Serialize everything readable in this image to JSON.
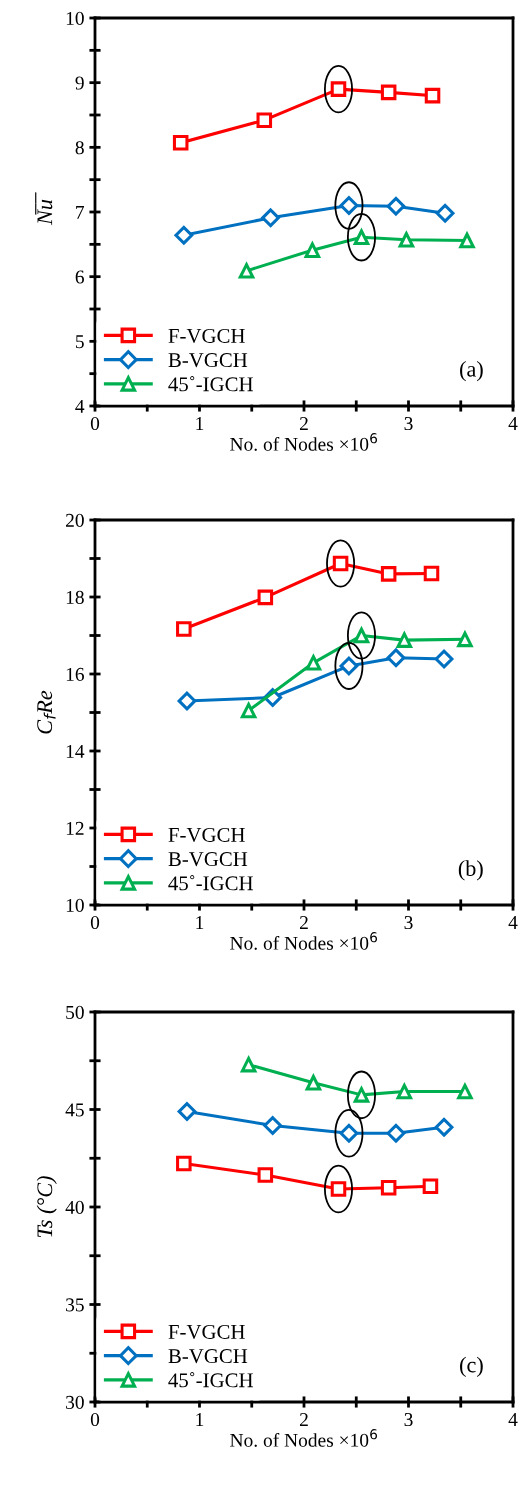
{
  "chart_data": [
    {
      "type": "line",
      "ylabel": "N̅u̅",
      "xlabel": "No. of Nodes ×10$^{6}$",
      "annotations": [
        {
          "text": "(a)"
        }
      ],
      "legend": "bottom left",
      "line_style": "solid",
      "grid": false,
      "xlim": [
        0,
        4
      ],
      "xticks": [
        0,
        {
          "value": 0.5,
          "label": null
        },
        1,
        {
          "value": 1.5,
          "label": null
        },
        2,
        {
          "value": 2.5,
          "label": null
        },
        3,
        {
          "value": 3.5,
          "label": null
        },
        4
      ],
      "ylim": [
        4,
        10
      ],
      "yticks": [
        4,
        {
          "value": 4.5,
          "label": null
        },
        5,
        {
          "value": 5.5,
          "label": null
        },
        6,
        {
          "value": 6.5,
          "label": null
        },
        7,
        {
          "value": 7.5,
          "label": null
        },
        8,
        {
          "value": 8.5,
          "label": null
        },
        9,
        {
          "value": 9.5,
          "label": null
        },
        10
      ],
      "series": [
        {
          "name": "F-VGCH",
          "color": "#ff0000",
          "marker": "square",
          "x": [
            0.82,
            1.62,
            2.33,
            2.81,
            3.23
          ],
          "values": [
            8.07,
            8.42,
            8.9,
            8.85,
            8.8
          ]
        },
        {
          "name": "B-VGCH",
          "color": "#0070c0",
          "marker": "diamond",
          "x": [
            0.85,
            1.68,
            2.43,
            2.88,
            3.35
          ],
          "values": [
            6.64,
            6.91,
            7.1,
            7.09,
            6.98
          ]
        },
        {
          "name": "45˚-IGCH",
          "color": "#00b050",
          "marker": "triangle",
          "x": [
            1.45,
            2.08,
            2.55,
            2.98,
            3.56
          ],
          "values": [
            6.09,
            6.41,
            6.61,
            6.57,
            6.56
          ]
        }
      ]
    },
    {
      "type": "line",
      "ylabel": "C$_{f}$Re",
      "xlabel": "No. of Nodes ×10$^{6}$",
      "annotations": [
        {
          "text": "(b)"
        }
      ],
      "legend": "bottom left",
      "line_style": "solid",
      "grid": false,
      "xlim": [
        0,
        4
      ],
      "xticks": [
        0,
        {
          "value": 0.5,
          "label": null
        },
        1,
        {
          "value": 1.5,
          "label": null
        },
        2,
        {
          "value": 2.5,
          "label": null
        },
        3,
        {
          "value": 3.5,
          "label": null
        },
        4
      ],
      "ylim": [
        10,
        20
      ],
      "yticks": [
        10,
        {
          "value": 11,
          "label": null
        },
        12,
        {
          "value": 13,
          "label": null
        },
        14,
        {
          "value": 15,
          "label": null
        },
        16,
        {
          "value": 17,
          "label": null
        },
        18,
        {
          "value": 19,
          "label": null
        },
        20
      ],
      "series": [
        {
          "name": "F-VGCH",
          "color": "#ff0000",
          "marker": "square",
          "x": [
            0.85,
            1.63,
            2.35,
            2.81,
            3.22
          ],
          "values": [
            17.17,
            17.99,
            18.87,
            18.6,
            18.61
          ]
        },
        {
          "name": "B-VGCH",
          "color": "#0070c0",
          "marker": "diamond",
          "x": [
            0.88,
            1.7,
            2.43,
            2.88,
            3.34
          ],
          "values": [
            15.3,
            15.39,
            16.21,
            16.42,
            16.39
          ]
        },
        {
          "name": "45˚-IGCH",
          "color": "#00b050",
          "marker": "triangle",
          "x": [
            1.47,
            2.09,
            2.55,
            2.96,
            3.54
          ],
          "values": [
            15.05,
            16.29,
            17.0,
            16.88,
            16.9
          ]
        }
      ]
    },
    {
      "type": "line",
      "ylabel": "Ts (°C)",
      "xlabel": "No. of Nodes ×10$^{6}$",
      "annotations": [
        {
          "text": "(c)"
        }
      ],
      "legend": "bottom left",
      "line_style": "solid",
      "grid": false,
      "xlim": [
        0,
        4
      ],
      "xticks": [
        0,
        {
          "value": 0.5,
          "label": null
        },
        1,
        {
          "value": 1.5,
          "label": null
        },
        2,
        {
          "value": 2.5,
          "label": null
        },
        3,
        {
          "value": 3.5,
          "label": null
        },
        4
      ],
      "ylim": [
        30,
        50
      ],
      "yticks": [
        30,
        {
          "value": 32.5,
          "label": null
        },
        35,
        {
          "value": 37.5,
          "label": null
        },
        40,
        {
          "value": 42.5,
          "label": null
        },
        45,
        {
          "value": 47.5,
          "label": null
        },
        50
      ],
      "series": [
        {
          "name": "F-VGCH",
          "color": "#ff0000",
          "marker": "square",
          "x": [
            0.85,
            1.63,
            2.33,
            2.81,
            3.21
          ],
          "values": [
            42.23,
            41.64,
            40.92,
            40.99,
            41.06
          ]
        },
        {
          "name": "B-VGCH",
          "color": "#0070c0",
          "marker": "diamond",
          "x": [
            0.88,
            1.7,
            2.43,
            2.88,
            3.34
          ],
          "values": [
            44.9,
            44.18,
            43.78,
            43.78,
            44.09
          ]
        },
        {
          "name": "45˚-IGCH",
          "color": "#00b050",
          "marker": "triangle",
          "x": [
            1.47,
            2.09,
            2.55,
            2.96,
            3.54
          ],
          "values": [
            47.3,
            46.37,
            45.75,
            45.92,
            45.92
          ]
        }
      ]
    }
  ]
}
